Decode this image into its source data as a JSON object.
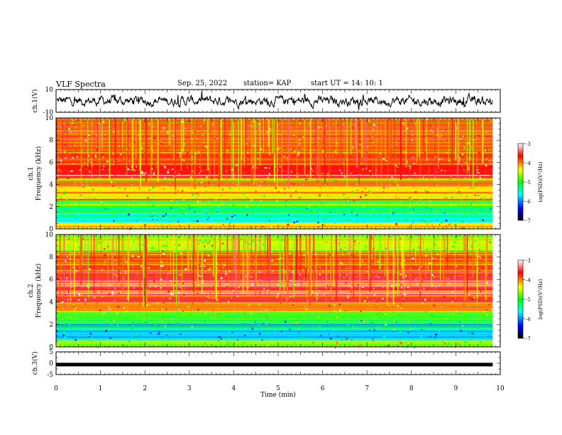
{
  "header": {
    "title": "VLF Spectra",
    "date": "Sep. 25, 2022",
    "station": "station= KAP",
    "start": "start  UT =   14: 10: 1"
  },
  "chart_data": [
    {
      "type": "line",
      "name": "ch1-waveform",
      "ylabel": "ch.1(V)",
      "ylim": [
        -10,
        10
      ],
      "yticks": [
        "10",
        "-10"
      ],
      "xlim": [
        0,
        10
      ],
      "note_values": "dense noisy waveform, roughly -8 to 9 V"
    },
    {
      "type": "heatmap",
      "name": "ch1-spectrogram",
      "ylabel_top": "ch.1",
      "ylabel": "Frequency (kHz)",
      "ylim": [
        0,
        10
      ],
      "yticks": [
        "0",
        "2",
        "4",
        "6",
        "8",
        "10"
      ],
      "xlim": [
        0,
        9.83
      ],
      "colorbar": {
        "label": "log(PSD)(V²/Hz)",
        "range": [
          -7,
          -3
        ],
        "ticks": [
          "-3",
          "-4",
          "-5",
          "-6",
          "-7"
        ]
      },
      "bands": [
        {
          "f0": 0.0,
          "f1": 0.6,
          "level": -4.3
        },
        {
          "f0": 0.6,
          "f1": 1.4,
          "level": -5.6
        },
        {
          "f0": 1.4,
          "f1": 2.0,
          "level": -5.3
        },
        {
          "f0": 2.0,
          "f1": 2.6,
          "level": -4.8
        },
        {
          "f0": 2.6,
          "f1": 3.8,
          "level": -4.3
        },
        {
          "f0": 3.8,
          "f1": 4.6,
          "level": -4.1
        },
        {
          "f0": 4.6,
          "f1": 5.8,
          "level": -3.6
        },
        {
          "f0": 5.8,
          "f1": 7.0,
          "level": -3.8
        },
        {
          "f0": 7.0,
          "f1": 10.0,
          "level": -3.9
        }
      ]
    },
    {
      "type": "heatmap",
      "name": "ch2-spectrogram",
      "ylabel_top": "ch.2",
      "ylabel": "Frequency (kHz)",
      "ylim": [
        0,
        10
      ],
      "yticks": [
        "0",
        "2",
        "4",
        "6",
        "8",
        "10"
      ],
      "xlim": [
        0,
        9.83
      ],
      "colorbar": {
        "label": "log(PSD)(V²/Hz)",
        "range": [
          -7,
          -3
        ],
        "ticks": [
          "-3",
          "-4",
          "-5",
          "-6",
          "-7"
        ]
      },
      "bands": [
        {
          "f0": 0.0,
          "f1": 0.6,
          "level": -4.6
        },
        {
          "f0": 0.6,
          "f1": 1.6,
          "level": -5.7
        },
        {
          "f0": 1.6,
          "f1": 2.4,
          "level": -5.3
        },
        {
          "f0": 2.4,
          "f1": 3.2,
          "level": -4.8
        },
        {
          "f0": 3.2,
          "f1": 4.0,
          "level": -4.0
        },
        {
          "f0": 4.0,
          "f1": 7.0,
          "level": -3.5
        },
        {
          "f0": 7.0,
          "f1": 8.4,
          "level": -3.8
        },
        {
          "f0": 8.4,
          "f1": 10.0,
          "level": -4.5
        }
      ]
    },
    {
      "type": "line",
      "name": "ch3-trace",
      "ylabel": "ch.3(V)",
      "ylim": [
        -5,
        5
      ],
      "yticks": [
        "5",
        "0",
        "-5"
      ],
      "xlim": [
        0,
        10
      ],
      "x": [
        0,
        9.83
      ],
      "y": [
        -0.6,
        -0.6
      ],
      "xlabel": "Time  (min)",
      "xticks": [
        "0",
        "1",
        "2",
        "3",
        "4",
        "5",
        "6",
        "7",
        "8",
        "9",
        "10"
      ]
    }
  ],
  "colors": {
    "scale": [
      "#000000",
      "#0000ff",
      "#00ffff",
      "#00ff00",
      "#ffff00",
      "#ff0000",
      "#ffffff"
    ]
  }
}
